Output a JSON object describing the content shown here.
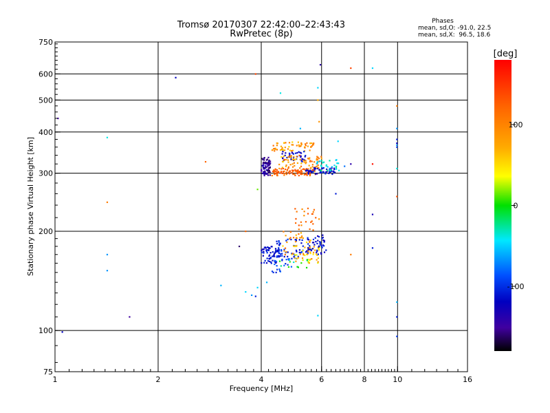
{
  "chart_data": {
    "type": "scatter",
    "title": "Tromsø 20170307 22:42:00–22:43:43",
    "subtitle": "RwPretec (8p)",
    "stats": {
      "heading": "Phases",
      "line_o": "mean, sd,O: -91.0, 22.5",
      "line_x": "mean, sd,X:  96.5, 18.6"
    },
    "xlabel": "Frequency [MHz]",
    "ylabel": "Stationary phase Virtual Height [km]",
    "xscale": "log",
    "yscale": "log",
    "xlim": [
      1,
      16
    ],
    "ylim": [
      75,
      750
    ],
    "x_ticks": [
      1,
      2,
      4,
      6,
      8,
      10,
      16
    ],
    "x_tick_labels": [
      "1",
      "2",
      "4",
      "6",
      "8",
      "10",
      "16"
    ],
    "x_grid": [
      2,
      4,
      6,
      8,
      10
    ],
    "y_ticks": [
      75,
      100,
      200,
      300,
      400,
      500,
      600,
      750
    ],
    "y_tick_labels": [
      "75",
      "100",
      "200",
      "300",
      "400",
      "500",
      "600",
      "750"
    ],
    "y_grid": [
      100,
      200,
      300,
      400,
      500,
      600
    ],
    "grid": true,
    "colorbar": {
      "title": "[deg]",
      "range": [
        -180,
        180
      ],
      "ticks": [
        100,
        0,
        -100
      ],
      "tick_labels": [
        "100",
        "0",
        "-100"
      ],
      "position": "right"
    },
    "series": [
      {
        "points": [
          [
            1.02,
            440,
            -150
          ],
          [
            1.05,
            99,
            -120
          ],
          [
            1.42,
            385,
            -40
          ],
          [
            1.42,
            245,
            110
          ],
          [
            1.42,
            170,
            -70
          ],
          [
            1.42,
            152,
            -70
          ],
          [
            1.65,
            110,
            -150
          ],
          [
            2.25,
            585,
            -120
          ],
          [
            2.75,
            325,
            120
          ],
          [
            3.05,
            137,
            -60
          ],
          [
            3.6,
            200,
            120
          ],
          [
            3.85,
            600,
            140
          ],
          [
            4.55,
            525,
            -40
          ],
          [
            5.2,
            410,
            -60
          ],
          [
            5.85,
            545,
            -50
          ],
          [
            5.9,
            430,
            100
          ],
          [
            5.85,
            500,
            90
          ],
          [
            5.95,
            640,
            -140
          ],
          [
            7.3,
            625,
            140
          ],
          [
            7.3,
            170,
            110
          ],
          [
            8.45,
            625,
            -50
          ],
          [
            8.45,
            225,
            -130
          ],
          [
            8.45,
            320,
            170
          ],
          [
            8.45,
            178,
            -110
          ],
          [
            9.95,
            480,
            110
          ],
          [
            9.95,
            410,
            -70
          ],
          [
            9.95,
            380,
            -110
          ],
          [
            9.95,
            370,
            -120
          ],
          [
            9.95,
            365,
            -70
          ],
          [
            9.95,
            360,
            -100
          ],
          [
            9.95,
            310,
            -40
          ],
          [
            9.95,
            255,
            130
          ],
          [
            9.95,
            122,
            -60
          ],
          [
            9.95,
            110,
            -110
          ],
          [
            9.95,
            96,
            -100
          ],
          [
            3.9,
            268,
            30
          ],
          [
            3.45,
            180,
            -160
          ],
          [
            3.6,
            131,
            -50
          ],
          [
            3.75,
            128,
            -70
          ],
          [
            3.85,
            127,
            -110
          ],
          [
            3.9,
            135,
            -50
          ],
          [
            4.15,
            140,
            -60
          ],
          [
            5.85,
            111,
            -50
          ],
          [
            6.6,
            260,
            -110
          ],
          [
            6.7,
            375,
            -50
          ],
          [
            7.0,
            315,
            -80
          ],
          [
            7.3,
            320,
            -140
          ]
        ]
      }
    ],
    "clusters": [
      {
        "f": [
          4.0,
          4.25
        ],
        "h": [
          295,
          335
        ],
        "phase": [
          -170,
          -130
        ],
        "n": 80
      },
      {
        "f": [
          4.3,
          5.7
        ],
        "h": [
          350,
          375
        ],
        "phase": [
          80,
          120
        ],
        "n": 60
      },
      {
        "f": [
          4.6,
          5.4
        ],
        "h": [
          325,
          350
        ],
        "phase": [
          -140,
          -100
        ],
        "n": 40
      },
      {
        "f": [
          4.5,
          6.0
        ],
        "h": [
          310,
          340
        ],
        "phase": [
          80,
          120
        ],
        "n": 70
      },
      {
        "f": [
          4.3,
          5.8
        ],
        "h": [
          295,
          310
        ],
        "phase": [
          110,
          140
        ],
        "n": 90
      },
      {
        "f": [
          5.4,
          6.6
        ],
        "h": [
          298,
          312
        ],
        "phase": [
          -140,
          -100
        ],
        "n": 60
      },
      {
        "f": [
          5.8,
          6.8
        ],
        "h": [
          305,
          330
        ],
        "phase": [
          -60,
          -20
        ],
        "n": 30
      },
      {
        "f": [
          4.0,
          4.6
        ],
        "h": [
          160,
          180
        ],
        "phase": [
          -130,
          -100
        ],
        "n": 70
      },
      {
        "f": [
          4.4,
          5.3
        ],
        "h": [
          165,
          190
        ],
        "phase": [
          -120,
          -90
        ],
        "n": 50
      },
      {
        "f": [
          4.6,
          5.6
        ],
        "h": [
          170,
          200
        ],
        "phase": [
          80,
          120
        ],
        "n": 40
      },
      {
        "f": [
          5.0,
          6.0
        ],
        "h": [
          160,
          180
        ],
        "phase": [
          60,
          110
        ],
        "n": 40
      },
      {
        "f": [
          5.4,
          6.2
        ],
        "h": [
          170,
          195
        ],
        "phase": [
          -130,
          -100
        ],
        "n": 50
      },
      {
        "f": [
          5.0,
          5.9
        ],
        "h": [
          200,
          235
        ],
        "phase": [
          100,
          130
        ],
        "n": 25
      },
      {
        "f": [
          4.3,
          5.0
        ],
        "h": [
          150,
          165
        ],
        "phase": [
          -110,
          -80
        ],
        "n": 20
      },
      {
        "f": [
          4.5,
          5.5
        ],
        "h": [
          155,
          165
        ],
        "phase": [
          -60,
          20
        ],
        "n": 12
      }
    ]
  }
}
